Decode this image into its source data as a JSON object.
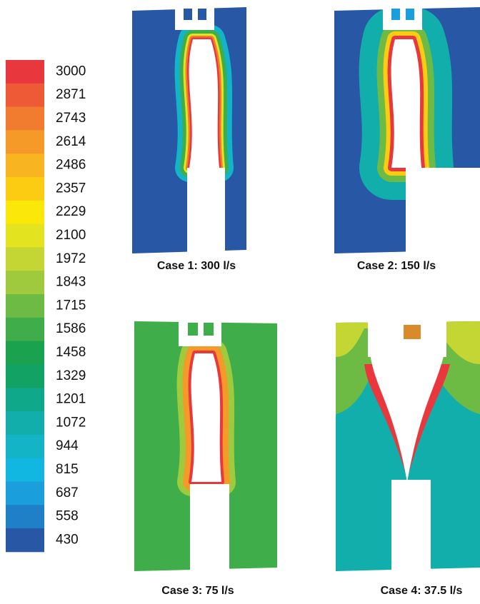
{
  "colorbar": {
    "levels": [
      3000,
      2871,
      2743,
      2614,
      2486,
      2357,
      2229,
      2100,
      1972,
      1843,
      1715,
      1586,
      1458,
      1329,
      1201,
      1072,
      944,
      815,
      687,
      558,
      430
    ],
    "colors": [
      "#e8383d",
      "#ee5a35",
      "#f17c2f",
      "#f59a29",
      "#f8b421",
      "#fccc12",
      "#fbe70a",
      "#e3e31f",
      "#c3d633",
      "#9fca3e",
      "#6dbb45",
      "#3ead4a",
      "#1ba24f",
      "#12a263",
      "#10a88a",
      "#11aeab",
      "#12b4c6",
      "#11b7e1",
      "#1a9fdc",
      "#1f80c8",
      "#2857a5"
    ]
  },
  "panels": [
    {
      "caption": "Case 1: 300 l/s"
    },
    {
      "caption": "Case 2: 150 l/s"
    },
    {
      "caption": "Case 3: 75 l/s"
    },
    {
      "caption": "Case 4: 37.5 l/s"
    }
  ]
}
